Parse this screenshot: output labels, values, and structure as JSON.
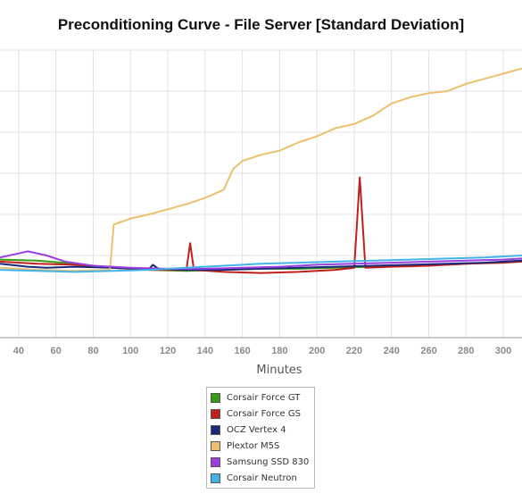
{
  "chart_data": {
    "type": "line",
    "title": "Preconditioning Curve - File Server [Standard Deviation]",
    "xlabel": "Minutes",
    "ylabel": "",
    "xlim": [
      30,
      310
    ],
    "ylim": [
      0,
      14
    ],
    "x_ticks": [
      40,
      60,
      80,
      100,
      120,
      140,
      160,
      180,
      200,
      220,
      240,
      260,
      280,
      300
    ],
    "y_ticks": [
      2,
      4,
      6,
      8,
      10,
      12,
      14
    ],
    "grid": true,
    "legend": "bottom",
    "series": [
      {
        "name": "Corsair Force GT",
        "color": "#3b9a13",
        "points": [
          [
            30,
            3.8
          ],
          [
            50,
            3.75
          ],
          [
            70,
            3.6
          ],
          [
            90,
            3.4
          ],
          [
            110,
            3.3
          ],
          [
            130,
            3.25
          ],
          [
            150,
            3.3
          ],
          [
            170,
            3.35
          ],
          [
            190,
            3.35
          ],
          [
            210,
            3.4
          ],
          [
            230,
            3.45
          ],
          [
            250,
            3.5
          ],
          [
            270,
            3.55
          ],
          [
            290,
            3.65
          ],
          [
            310,
            3.75
          ]
        ]
      },
      {
        "name": "Corsair Force GS",
        "color": "#c0201c",
        "points": [
          [
            30,
            3.7
          ],
          [
            50,
            3.6
          ],
          [
            70,
            3.55
          ],
          [
            90,
            3.4
          ],
          [
            110,
            3.3
          ],
          [
            130,
            3.3
          ],
          [
            132,
            4.6
          ],
          [
            134,
            3.3
          ],
          [
            150,
            3.2
          ],
          [
            170,
            3.15
          ],
          [
            190,
            3.2
          ],
          [
            210,
            3.3
          ],
          [
            220,
            3.4
          ],
          [
            223,
            7.8
          ],
          [
            226,
            3.4
          ],
          [
            240,
            3.45
          ],
          [
            260,
            3.5
          ],
          [
            280,
            3.6
          ],
          [
            300,
            3.65
          ],
          [
            310,
            3.7
          ]
        ]
      },
      {
        "name": "OCZ Vertex 4",
        "color": "#1a2a7a",
        "points": [
          [
            30,
            3.6
          ],
          [
            45,
            3.45
          ],
          [
            55,
            3.4
          ],
          [
            70,
            3.45
          ],
          [
            90,
            3.4
          ],
          [
            110,
            3.35
          ],
          [
            112,
            3.55
          ],
          [
            115,
            3.35
          ],
          [
            130,
            3.3
          ],
          [
            150,
            3.3
          ],
          [
            170,
            3.35
          ],
          [
            190,
            3.4
          ],
          [
            210,
            3.45
          ],
          [
            230,
            3.5
          ],
          [
            250,
            3.55
          ],
          [
            270,
            3.6
          ],
          [
            290,
            3.65
          ],
          [
            310,
            3.75
          ]
        ]
      },
      {
        "name": "Plextor M5S",
        "color": "#ecc06e",
        "points": [
          [
            30,
            3.4
          ],
          [
            50,
            3.3
          ],
          [
            70,
            3.25
          ],
          [
            89,
            3.3
          ],
          [
            91,
            5.5
          ],
          [
            100,
            5.8
          ],
          [
            110,
            6.0
          ],
          [
            120,
            6.25
          ],
          [
            130,
            6.5
          ],
          [
            140,
            6.8
          ],
          [
            150,
            7.2
          ],
          [
            155,
            8.2
          ],
          [
            160,
            8.6
          ],
          [
            170,
            8.9
          ],
          [
            180,
            9.1
          ],
          [
            190,
            9.5
          ],
          [
            200,
            9.8
          ],
          [
            210,
            10.2
          ],
          [
            220,
            10.4
          ],
          [
            230,
            10.8
          ],
          [
            240,
            11.4
          ],
          [
            250,
            11.7
          ],
          [
            260,
            11.9
          ],
          [
            270,
            12.0
          ],
          [
            280,
            12.35
          ],
          [
            290,
            12.6
          ],
          [
            300,
            12.85
          ],
          [
            310,
            13.1
          ]
        ]
      },
      {
        "name": "Samsung SSD 830",
        "color": "#9b3fe0",
        "points": [
          [
            30,
            3.9
          ],
          [
            40,
            4.1
          ],
          [
            45,
            4.2
          ],
          [
            55,
            4.0
          ],
          [
            65,
            3.7
          ],
          [
            80,
            3.5
          ],
          [
            100,
            3.4
          ],
          [
            120,
            3.35
          ],
          [
            140,
            3.35
          ],
          [
            160,
            3.4
          ],
          [
            180,
            3.45
          ],
          [
            200,
            3.55
          ],
          [
            220,
            3.6
          ],
          [
            240,
            3.65
          ],
          [
            260,
            3.7
          ],
          [
            280,
            3.75
          ],
          [
            300,
            3.8
          ],
          [
            310,
            3.85
          ]
        ]
      },
      {
        "name": "Corsair Neutron",
        "color": "#43b4ea",
        "points": [
          [
            30,
            3.3
          ],
          [
            50,
            3.25
          ],
          [
            70,
            3.2
          ],
          [
            90,
            3.25
          ],
          [
            110,
            3.3
          ],
          [
            130,
            3.4
          ],
          [
            150,
            3.5
          ],
          [
            170,
            3.6
          ],
          [
            190,
            3.65
          ],
          [
            210,
            3.7
          ],
          [
            230,
            3.75
          ],
          [
            250,
            3.8
          ],
          [
            270,
            3.85
          ],
          [
            290,
            3.9
          ],
          [
            310,
            4.0
          ]
        ]
      }
    ]
  }
}
